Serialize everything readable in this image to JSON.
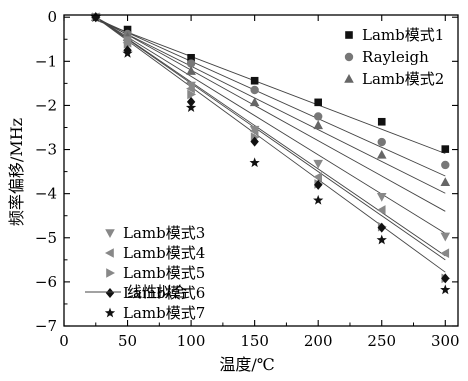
{
  "chart_data": {
    "type": "scatter",
    "title": "",
    "xlabel": "温度/℃",
    "ylabel": "频率偏移/MHz",
    "xlim": [
      0,
      310
    ],
    "ylim": [
      -7,
      0.05
    ],
    "x_ticks": [
      0,
      50,
      100,
      150,
      200,
      250,
      300
    ],
    "y_ticks": [
      0,
      -1,
      -2,
      -3,
      -4,
      -5,
      -6,
      -7
    ],
    "grid": false,
    "legend_placement": [
      "top-right",
      "bottom-left"
    ],
    "x": [
      25,
      50,
      100,
      150,
      200,
      250,
      300
    ],
    "series": [
      {
        "name": "Lamb模式1",
        "marker": "square",
        "values": [
          0,
          -0.28,
          -0.92,
          -1.44,
          -1.93,
          -2.37,
          -2.99
        ],
        "fit": [
          0.21,
          -0.011
        ]
      },
      {
        "name": "Rayleigh",
        "marker": "circle",
        "values": [
          0,
          -0.38,
          -1.05,
          -1.65,
          -2.25,
          -2.83,
          -3.35
        ],
        "fit": [
          0.3,
          -0.013
        ]
      },
      {
        "name": "Lamb模式2",
        "marker": "triangle-up",
        "values": [
          0,
          -0.45,
          -1.22,
          -1.93,
          -2.45,
          -3.12,
          -3.74
        ],
        "fit": [
          0.33,
          -0.0144
        ]
      },
      {
        "name": "Lamb模式3",
        "marker": "triangle-down",
        "values": [
          0,
          -0.52,
          -1.55,
          -2.55,
          -3.32,
          -4.07,
          -4.97
        ],
        "fit": [
          0.4,
          -0.016
        ]
      },
      {
        "name": "Lamb模式4",
        "marker": "triangle-left",
        "values": [
          0,
          -0.58,
          -1.62,
          -2.58,
          -3.62,
          -4.37,
          -5.35
        ],
        "fit": [
          0.44,
          -0.0178
        ]
      },
      {
        "name": "Lamb模式5",
        "marker": "triangle-right",
        "values": [
          0,
          -0.6,
          -1.75,
          -2.72,
          -3.78,
          -4.75,
          -5.92
        ],
        "fit": [
          0.5,
          -0.0197
        ]
      },
      {
        "name": "Lamb模式6",
        "marker": "diamond",
        "values": [
          0,
          -0.75,
          -1.92,
          -2.82,
          -3.8,
          -4.77,
          -5.92
        ],
        "fit": [
          0.5,
          -0.02
        ]
      },
      {
        "name": "Lamb模式7",
        "marker": "star",
        "values": [
          0,
          -0.82,
          -2.05,
          -3.3,
          -4.15,
          -5.05,
          -6.18
        ],
        "fit": [
          0.52,
          -0.021
        ]
      }
    ],
    "fit_label": "线性拟合"
  }
}
